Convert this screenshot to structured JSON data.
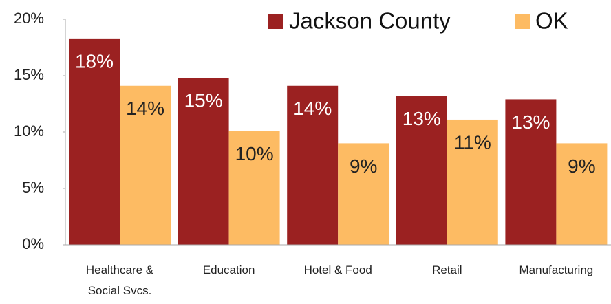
{
  "chart_data": {
    "type": "bar",
    "categories": [
      "Healthcare & Social Svcs.",
      "Education",
      "Hotel & Food",
      "Retail",
      "Manufacturing"
    ],
    "series": [
      {
        "name": "Jackson County",
        "color": "#9b2121",
        "values": [
          18.3,
          14.8,
          14.1,
          13.2,
          12.9
        ],
        "value_labels": [
          "18%",
          "15%",
          "14%",
          "13%",
          "13%"
        ]
      },
      {
        "name": "OK",
        "color": "#fdbb63",
        "values": [
          14.1,
          10.1,
          9.0,
          11.1,
          9.0
        ],
        "value_labels": [
          "14%",
          "10%",
          "9%",
          "11%",
          "9%"
        ]
      }
    ],
    "ylim": [
      0,
      20
    ],
    "yticks": [
      {
        "value": 0,
        "label": "0%"
      },
      {
        "value": 5,
        "label": "5%"
      },
      {
        "value": 10,
        "label": "10%"
      },
      {
        "value": 15,
        "label": "15%"
      },
      {
        "value": 20,
        "label": "20%"
      }
    ],
    "legend": "top-right"
  }
}
